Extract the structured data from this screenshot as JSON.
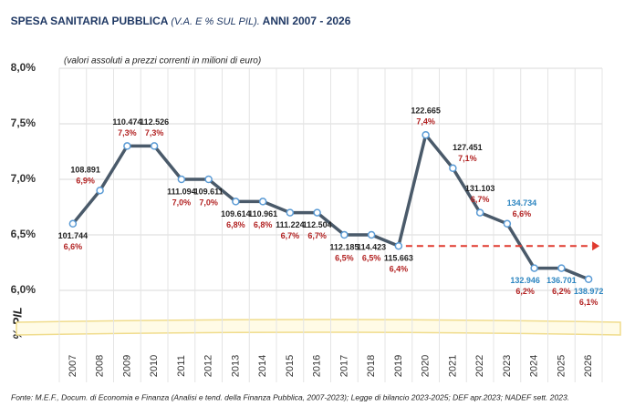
{
  "chart_data": {
    "type": "line",
    "title": [
      "SPESA SANITARIA PUBBLICA",
      "(V.A. E % SUL PIL).",
      "ANNI 2007 - 2026"
    ],
    "subtitle": "(valori assoluti a prezzi correnti in milioni di euro)",
    "y_label": "% PIL",
    "source": "Fonte: M.E.F.,  Docum. di Economia e Finanza  (Analisi e tend. della Finanza Pubblica, 2007-2023);  Legge di bilancio 2023-2025; DEF apr.2023;  NADEF  sett.  2023.",
    "categories": [
      "2007",
      "2008",
      "2009",
      "2010",
      "2011",
      "2012",
      "2013",
      "2014",
      "2015",
      "2016",
      "2017",
      "2018",
      "2019",
      "2020",
      "2021",
      "2022",
      "2023",
      "2024",
      "2025",
      "2026"
    ],
    "series": [
      {
        "name": "% PIL",
        "color": "#4a5a6a",
        "values": [
          6.6,
          6.9,
          7.3,
          7.3,
          7.0,
          7.0,
          6.8,
          6.8,
          6.7,
          6.7,
          6.5,
          6.5,
          6.4,
          7.4,
          7.1,
          6.7,
          6.6,
          6.2,
          6.2,
          6.1
        ],
        "value_labels": [
          "6,6%",
          "6,9%",
          "7,3%",
          "7,3%",
          "7,0%",
          "7,0%",
          "6,8%",
          "6,8%",
          "6,7%",
          "6,7%",
          "6,5%",
          "6,5%",
          "6,4%",
          "7,4%",
          "7,1%",
          "6,7%",
          "6,6%",
          "6,2%",
          "6,2%",
          "6,1%"
        ]
      }
    ],
    "amounts": {
      "values": [
        101744,
        108891,
        110474,
        112526,
        111094,
        109611,
        109614,
        110961,
        111224,
        112504,
        112185,
        114423,
        115663,
        122665,
        127451,
        131103,
        134734,
        132946,
        136701,
        138972
      ],
      "value_labels": [
        "101.744",
        "108.891",
        "110.474",
        "112.526",
        "111.094",
        "109.611",
        "109.614",
        "110.961",
        "111.224",
        "112.504",
        "112.185",
        "114.423",
        "115.663",
        "122.665",
        "127.451",
        "131.103",
        "134.734",
        "132.946",
        "136.701",
        "138.972"
      ]
    },
    "ylim": [
      5.5,
      8.0
    ],
    "yticks": [
      {
        "value": 6.0,
        "label": "6,0%"
      },
      {
        "value": 6.5,
        "label": "6,5%"
      },
      {
        "value": 7.0,
        "label": "7,0%"
      },
      {
        "value": 7.5,
        "label": "7,5%"
      },
      {
        "value": 8.0,
        "label": "8,0%"
      }
    ],
    "grid": true
  }
}
